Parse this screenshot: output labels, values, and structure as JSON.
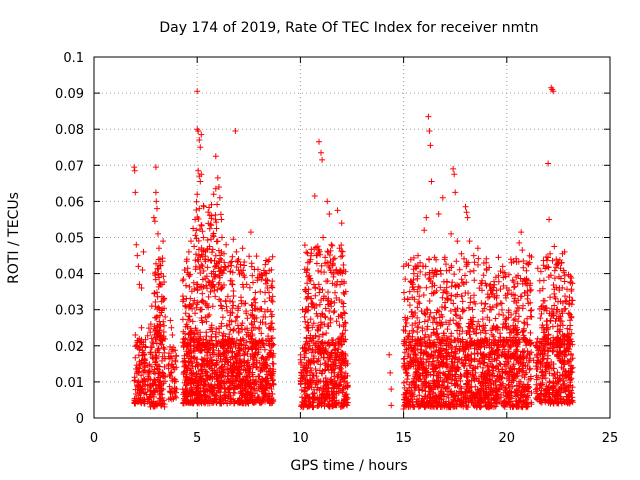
{
  "chart_data": {
    "type": "scatter",
    "title": "Day 174 of 2019, Rate Of TEC Index for receiver nmtn",
    "xlabel": "GPS time / hours",
    "ylabel": "ROTI / TECUs",
    "xlim": [
      0,
      25
    ],
    "ylim": [
      0,
      0.1
    ],
    "xticks": [
      "0",
      "5",
      "10",
      "15",
      "20",
      "25"
    ],
    "yticks": [
      "0",
      "0.01",
      "0.02",
      "0.03",
      "0.04",
      "0.05",
      "0.06",
      "0.07",
      "0.08",
      "0.09",
      "0.1"
    ],
    "grid": true,
    "marker": "+",
    "series_color": "#ff0000",
    "series": [
      {
        "name": "ROTI",
        "points": [
          [
            1.95,
            0.0695
          ],
          [
            1.97,
            0.0685
          ],
          [
            2.0,
            0.0625
          ],
          [
            2.05,
            0.048
          ],
          [
            2.1,
            0.045
          ],
          [
            2.15,
            0.042
          ],
          [
            2.2,
            0.037
          ],
          [
            2.3,
            0.036
          ],
          [
            2.35,
            0.041
          ],
          [
            2.4,
            0.046
          ],
          [
            2.0,
            0.023
          ],
          [
            2.1,
            0.021
          ],
          [
            2.2,
            0.019
          ],
          [
            2.3,
            0.025
          ],
          [
            2.55,
            0.0065
          ],
          [
            2.6,
            0.0045
          ],
          [
            2.7,
            0.009
          ],
          [
            2.75,
            0.026
          ],
          [
            2.8,
            0.031
          ],
          [
            2.9,
            0.0555
          ],
          [
            2.95,
            0.0545
          ],
          [
            3.0,
            0.0625
          ],
          [
            3.02,
            0.06
          ],
          [
            3.05,
            0.058
          ],
          [
            3.0,
            0.0695
          ],
          [
            3.1,
            0.051
          ],
          [
            3.15,
            0.047
          ],
          [
            3.2,
            0.044
          ],
          [
            3.25,
            0.04
          ],
          [
            3.3,
            0.037
          ],
          [
            3.35,
            0.049
          ],
          [
            3.4,
            0.033
          ],
          [
            3.45,
            0.028
          ],
          [
            3.7,
            0.027
          ],
          [
            3.75,
            0.025
          ],
          [
            3.8,
            0.023
          ],
          [
            3.85,
            0.014
          ],
          [
            3.9,
            0.008
          ],
          [
            4.3,
            0.038
          ],
          [
            4.4,
            0.041
          ],
          [
            4.5,
            0.044
          ],
          [
            4.6,
            0.046
          ],
          [
            4.7,
            0.049
          ],
          [
            4.8,
            0.0525
          ],
          [
            4.85,
            0.0475
          ],
          [
            4.9,
            0.055
          ],
          [
            5.0,
            0.0905
          ],
          [
            5.0,
            0.08
          ],
          [
            5.05,
            0.0795
          ],
          [
            5.1,
            0.077
          ],
          [
            5.15,
            0.075
          ],
          [
            5.2,
            0.0785
          ],
          [
            5.05,
            0.0685
          ],
          [
            5.1,
            0.067
          ],
          [
            5.15,
            0.0655
          ],
          [
            5.2,
            0.0675
          ],
          [
            5.0,
            0.062
          ],
          [
            5.1,
            0.058
          ],
          [
            5.2,
            0.0535
          ],
          [
            5.3,
            0.05
          ],
          [
            5.4,
            0.046
          ],
          [
            5.6,
            0.0475
          ],
          [
            5.7,
            0.056
          ],
          [
            5.8,
            0.062
          ],
          [
            5.9,
            0.0635
          ],
          [
            6.0,
            0.0665
          ],
          [
            5.9,
            0.0725
          ],
          [
            6.05,
            0.064
          ],
          [
            6.1,
            0.061
          ],
          [
            6.2,
            0.05
          ],
          [
            6.3,
            0.0455
          ],
          [
            6.4,
            0.048
          ],
          [
            6.5,
            0.042
          ],
          [
            6.6,
            0.0405
          ],
          [
            6.75,
            0.0495
          ],
          [
            6.85,
            0.0795
          ],
          [
            6.9,
            0.046
          ],
          [
            7.0,
            0.044
          ],
          [
            7.1,
            0.0425
          ],
          [
            7.2,
            0.047
          ],
          [
            7.3,
            0.039
          ],
          [
            7.4,
            0.037
          ],
          [
            7.6,
            0.0515
          ],
          [
            7.8,
            0.033
          ],
          [
            8.0,
            0.03
          ],
          [
            8.2,
            0.028
          ],
          [
            8.3,
            0.0425
          ],
          [
            8.35,
            0.04
          ],
          [
            8.4,
            0.036
          ],
          [
            8.5,
            0.025
          ],
          [
            8.6,
            0.02
          ],
          [
            8.7,
            0.015
          ],
          [
            10.1,
            0.03
          ],
          [
            10.2,
            0.028
          ],
          [
            10.3,
            0.033
          ],
          [
            10.5,
            0.038
          ],
          [
            10.7,
            0.0615
          ],
          [
            10.8,
            0.045
          ],
          [
            10.9,
            0.0765
          ],
          [
            11.0,
            0.0735
          ],
          [
            11.05,
            0.0715
          ],
          [
            11.1,
            0.05
          ],
          [
            11.2,
            0.0445
          ],
          [
            11.3,
            0.06
          ],
          [
            11.4,
            0.0565
          ],
          [
            11.5,
            0.048
          ],
          [
            11.6,
            0.044
          ],
          [
            11.8,
            0.0575
          ],
          [
            11.9,
            0.047
          ],
          [
            12.0,
            0.054
          ],
          [
            12.1,
            0.041
          ],
          [
            12.2,
            0.035
          ],
          [
            14.3,
            0.0175
          ],
          [
            14.35,
            0.0125
          ],
          [
            14.4,
            0.008
          ],
          [
            14.4,
            0.0035
          ],
          [
            15.0,
            0.0025
          ],
          [
            15.1,
            0.007
          ],
          [
            15.2,
            0.033
          ],
          [
            15.3,
            0.035
          ],
          [
            15.4,
            0.0375
          ],
          [
            15.5,
            0.04
          ],
          [
            15.6,
            0.0415
          ],
          [
            15.7,
            0.045
          ],
          [
            15.8,
            0.043
          ],
          [
            16.0,
            0.052
          ],
          [
            16.1,
            0.0555
          ],
          [
            16.2,
            0.0835
          ],
          [
            16.25,
            0.0795
          ],
          [
            16.3,
            0.0755
          ],
          [
            16.35,
            0.0655
          ],
          [
            16.5,
            0.0445
          ],
          [
            16.7,
            0.0565
          ],
          [
            16.9,
            0.061
          ],
          [
            17.0,
            0.0445
          ],
          [
            17.3,
            0.051
          ],
          [
            17.4,
            0.069
          ],
          [
            17.45,
            0.0675
          ],
          [
            17.5,
            0.0625
          ],
          [
            17.6,
            0.049
          ],
          [
            17.8,
            0.0455
          ],
          [
            18.0,
            0.0585
          ],
          [
            18.05,
            0.057
          ],
          [
            18.1,
            0.0555
          ],
          [
            18.2,
            0.049
          ],
          [
            18.4,
            0.045
          ],
          [
            18.6,
            0.047
          ],
          [
            18.8,
            0.038
          ],
          [
            19.0,
            0.043
          ],
          [
            19.2,
            0.037
          ],
          [
            19.4,
            0.0335
          ],
          [
            19.6,
            0.0445
          ],
          [
            19.8,
            0.042
          ],
          [
            20.0,
            0.036
          ],
          [
            20.2,
            0.044
          ],
          [
            20.4,
            0.034
          ],
          [
            20.6,
            0.0485
          ],
          [
            20.7,
            0.0515
          ],
          [
            20.75,
            0.0465
          ],
          [
            20.8,
            0.0435
          ],
          [
            20.9,
            0.038
          ],
          [
            21.0,
            0.033
          ],
          [
            21.2,
            0.028
          ],
          [
            21.3,
            0.016
          ],
          [
            21.5,
            0.0415
          ],
          [
            21.6,
            0.038
          ],
          [
            21.7,
            0.025
          ],
          [
            21.8,
            0.03
          ],
          [
            22.0,
            0.0705
          ],
          [
            22.05,
            0.055
          ],
          [
            22.1,
            0.0455
          ],
          [
            22.15,
            0.0915
          ],
          [
            22.2,
            0.091
          ],
          [
            22.25,
            0.0905
          ],
          [
            22.3,
            0.0475
          ],
          [
            22.4,
            0.044
          ],
          [
            22.5,
            0.043
          ],
          [
            22.6,
            0.0415
          ],
          [
            22.7,
            0.0455
          ],
          [
            22.8,
            0.046
          ],
          [
            22.9,
            0.0325
          ],
          [
            23.0,
            0.029
          ],
          [
            23.05,
            0.0245
          ]
        ],
        "dense_clusters": [
          {
            "x": [
              1.95,
              2.5
            ],
            "y": [
              0.004,
              0.022
            ],
            "count": 110
          },
          {
            "x": [
              2.6,
              3.45
            ],
            "y": [
              0.003,
              0.026
            ],
            "count": 160
          },
          {
            "x": [
              2.9,
              3.4
            ],
            "y": [
              0.02,
              0.045
            ],
            "count": 60
          },
          {
            "x": [
              3.6,
              4.0
            ],
            "y": [
              0.005,
              0.02
            ],
            "count": 50
          },
          {
            "x": [
              4.3,
              8.7
            ],
            "y": [
              0.004,
              0.022
            ],
            "count": 950
          },
          {
            "x": [
              4.3,
              8.7
            ],
            "y": [
              0.02,
              0.045
            ],
            "count": 380
          },
          {
            "x": [
              4.9,
              6.2
            ],
            "y": [
              0.035,
              0.06
            ],
            "count": 90
          },
          {
            "x": [
              10.0,
              12.3
            ],
            "y": [
              0.003,
              0.02
            ],
            "count": 420
          },
          {
            "x": [
              10.2,
              12.2
            ],
            "y": [
              0.02,
              0.048
            ],
            "count": 230
          },
          {
            "x": [
              15.0,
              21.2
            ],
            "y": [
              0.003,
              0.022
            ],
            "count": 1250
          },
          {
            "x": [
              15.0,
              21.2
            ],
            "y": [
              0.02,
              0.045
            ],
            "count": 520
          },
          {
            "x": [
              21.4,
              23.2
            ],
            "y": [
              0.004,
              0.022
            ],
            "count": 360
          },
          {
            "x": [
              21.6,
              23.2
            ],
            "y": [
              0.02,
              0.045
            ],
            "count": 170
          }
        ]
      }
    ]
  }
}
